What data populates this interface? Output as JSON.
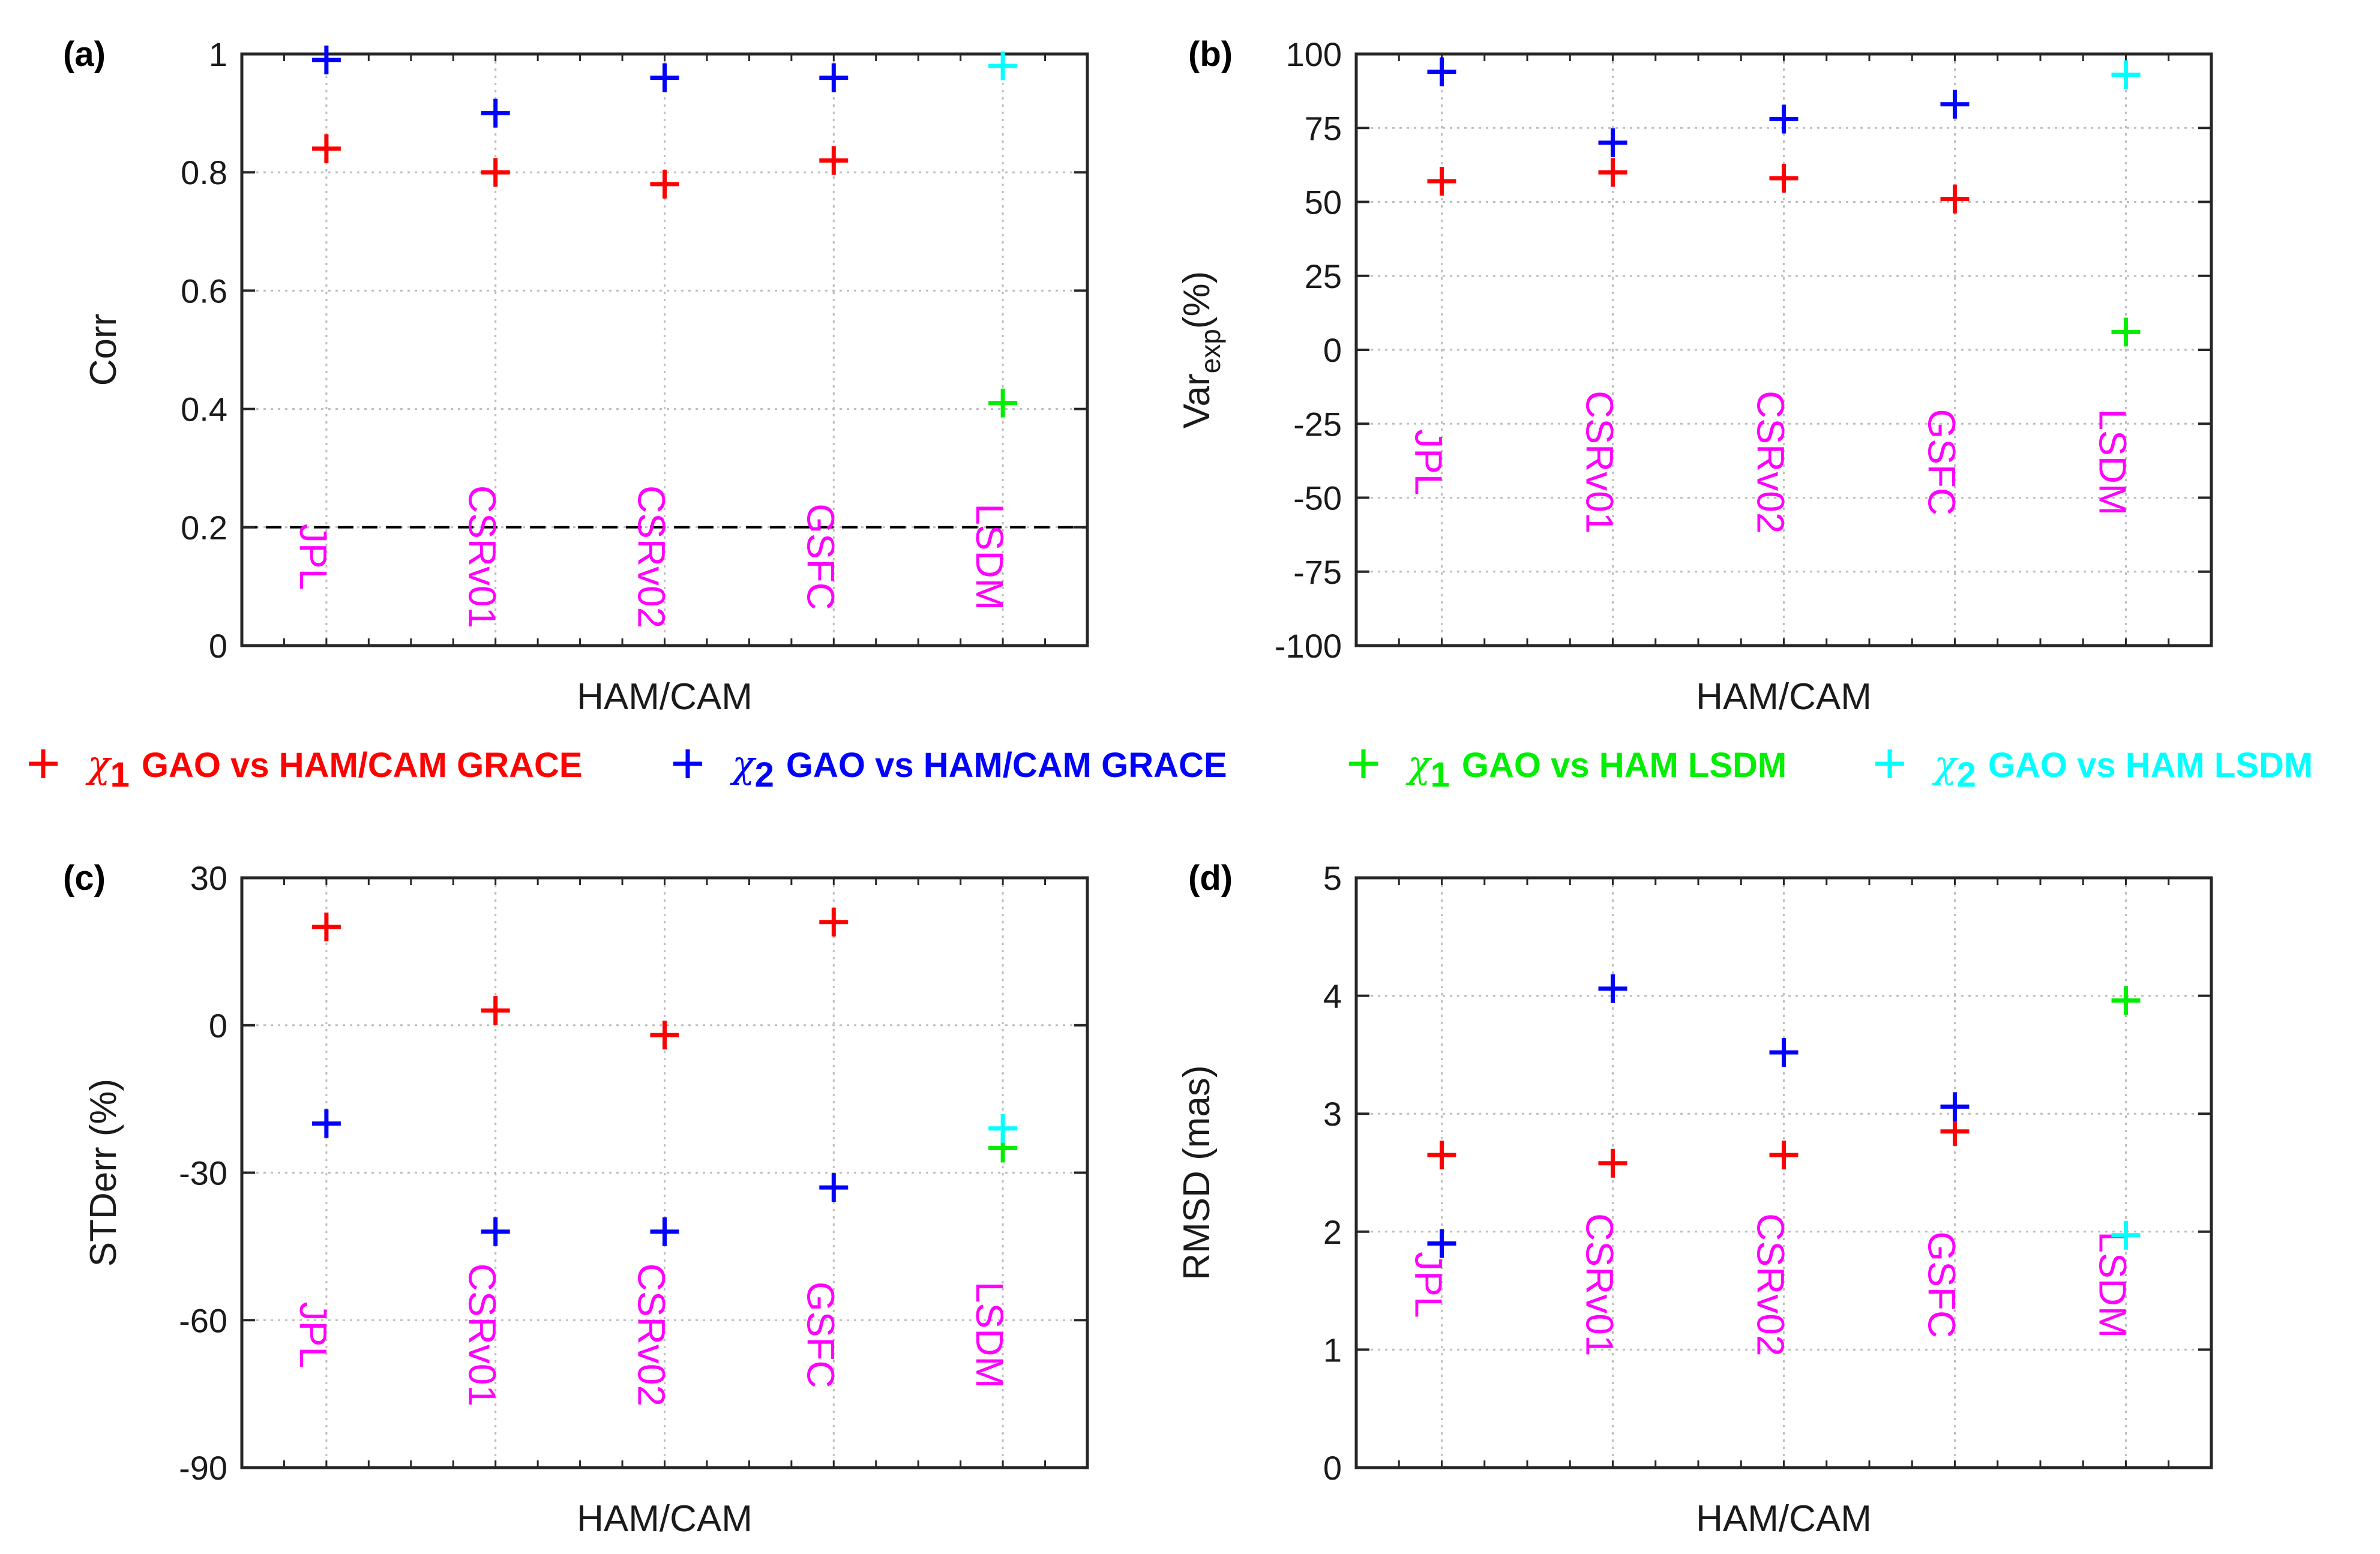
{
  "legend": {
    "items": [
      {
        "chi": "χ",
        "sub": "1",
        "text": "GAO vs HAM/CAM GRACE",
        "color": "#ff0000"
      },
      {
        "chi": "χ",
        "sub": "2",
        "text": "GAO vs HAM/CAM GRACE",
        "color": "#0000ff"
      },
      {
        "chi": "χ",
        "sub": "1",
        "text": "GAO vs HAM LSDM",
        "color": "#00ee00"
      },
      {
        "chi": "χ",
        "sub": "2",
        "text": "GAO vs HAM LSDM",
        "color": "#00ffff"
      }
    ]
  },
  "chart_data": [
    {
      "type": "scatter",
      "panel": "(a)",
      "xlabel": "HAM/CAM",
      "ylabel": "Corr",
      "ylabel_sub": "",
      "ylabel_suffix": "",
      "ylim": [
        0,
        1
      ],
      "yticks": [
        "0",
        "0.2",
        "0.4",
        "0.6",
        "0.8",
        "1"
      ],
      "ytick_values": [
        0,
        0.2,
        0.4,
        0.6,
        0.8,
        1
      ],
      "categories": [
        "JPL",
        "CSRv01",
        "CSRv02",
        "GSFC",
        "LSDM"
      ],
      "category_label_y": 0.15,
      "reference_line": 0.2,
      "grid": true,
      "series": [
        {
          "color": "#ff0000",
          "points": [
            [
              0,
              0.84
            ],
            [
              1,
              0.8
            ],
            [
              2,
              0.78
            ],
            [
              3,
              0.82
            ]
          ]
        },
        {
          "color": "#0000ff",
          "points": [
            [
              0,
              0.99
            ],
            [
              1,
              0.9
            ],
            [
              2,
              0.96
            ],
            [
              3,
              0.96
            ]
          ]
        },
        {
          "color": "#00ee00",
          "points": [
            [
              4,
              0.41
            ]
          ]
        },
        {
          "color": "#00ffff",
          "points": [
            [
              4,
              0.98
            ]
          ]
        }
      ]
    },
    {
      "type": "scatter",
      "panel": "(b)",
      "xlabel": "HAM/CAM",
      "ylabel": "Var",
      "ylabel_sub": "exp",
      "ylabel_suffix": "(%)",
      "ylim": [
        -100,
        100
      ],
      "yticks": [
        "-100",
        "-75",
        "-50",
        "-25",
        "0",
        "25",
        "50",
        "75",
        "100"
      ],
      "ytick_values": [
        -100,
        -75,
        -50,
        -25,
        0,
        25,
        50,
        75,
        100
      ],
      "categories": [
        "JPL",
        "CSRv01",
        "CSRv02",
        "GSFC",
        "LSDM"
      ],
      "category_label_y": -38,
      "grid": true,
      "series": [
        {
          "color": "#ff0000",
          "points": [
            [
              0,
              57
            ],
            [
              1,
              60
            ],
            [
              2,
              58
            ],
            [
              3,
              51
            ]
          ]
        },
        {
          "color": "#0000ff",
          "points": [
            [
              0,
              94
            ],
            [
              1,
              70
            ],
            [
              2,
              78
            ],
            [
              3,
              83
            ]
          ]
        },
        {
          "color": "#00ee00",
          "points": [
            [
              4,
              6
            ]
          ]
        },
        {
          "color": "#00ffff",
          "points": [
            [
              4,
              93
            ]
          ]
        }
      ]
    },
    {
      "type": "scatter",
      "panel": "(c)",
      "xlabel": "HAM/CAM",
      "ylabel": "STDerr (%)",
      "ylabel_sub": "",
      "ylabel_suffix": "",
      "ylim": [
        -90,
        30
      ],
      "yticks": [
        "-90",
        "-60",
        "-30",
        "0",
        "30"
      ],
      "ytick_values": [
        -90,
        -60,
        -30,
        0,
        30
      ],
      "categories": [
        "JPL",
        "CSRv01",
        "CSRv02",
        "GSFC",
        "LSDM"
      ],
      "category_label_y": -63,
      "grid": true,
      "series": [
        {
          "color": "#ff0000",
          "points": [
            [
              0,
              20
            ],
            [
              1,
              3
            ],
            [
              2,
              -2
            ],
            [
              3,
              21
            ]
          ]
        },
        {
          "color": "#0000ff",
          "points": [
            [
              0,
              -20
            ],
            [
              1,
              -42
            ],
            [
              2,
              -42
            ],
            [
              3,
              -33
            ]
          ]
        },
        {
          "color": "#00ee00",
          "points": [
            [
              4,
              -25
            ]
          ]
        },
        {
          "color": "#00ffff",
          "points": [
            [
              4,
              -21
            ]
          ]
        }
      ]
    },
    {
      "type": "scatter",
      "panel": "(d)",
      "xlabel": "HAM/CAM",
      "ylabel": "RMSD (mas)",
      "ylabel_sub": "",
      "ylabel_suffix": "",
      "ylim": [
        0,
        5
      ],
      "yticks": [
        "0",
        "1",
        "2",
        "3",
        "4",
        "5"
      ],
      "ytick_values": [
        0,
        1,
        2,
        3,
        4,
        5
      ],
      "categories": [
        "JPL",
        "CSRv01",
        "CSRv02",
        "GSFC",
        "LSDM"
      ],
      "category_label_y": 1.55,
      "grid": true,
      "series": [
        {
          "color": "#ff0000",
          "points": [
            [
              0,
              2.65
            ],
            [
              1,
              2.58
            ],
            [
              2,
              2.65
            ],
            [
              3,
              2.85
            ]
          ]
        },
        {
          "color": "#0000ff",
          "points": [
            [
              0,
              1.9
            ],
            [
              1,
              4.06
            ],
            [
              2,
              3.52
            ],
            [
              3,
              3.06
            ]
          ]
        },
        {
          "color": "#00ee00",
          "points": [
            [
              4,
              3.96
            ]
          ]
        },
        {
          "color": "#00ffff",
          "points": [
            [
              4,
              1.97
            ]
          ]
        }
      ]
    }
  ]
}
